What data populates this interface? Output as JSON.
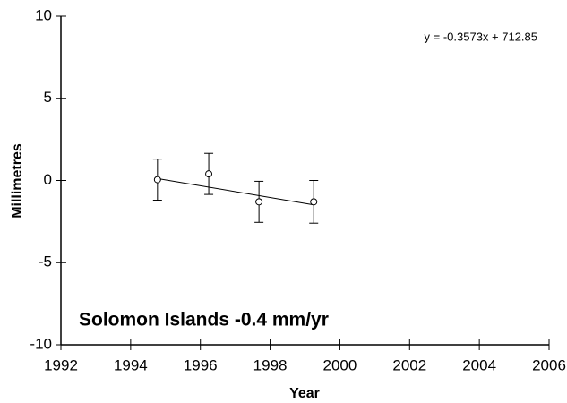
{
  "chart_data": {
    "type": "scatter",
    "x_label": "Year",
    "y_label": "Millimetres",
    "annotation": "Solomon Islands -0.4 mm/yr",
    "trendline": {
      "label": "y = -0.3573x + 712.85",
      "slope": -0.3573,
      "intercept": 712.85
    },
    "x": [
      1994.77,
      1996.24,
      1997.68,
      1999.25
    ],
    "values": [
      0.05,
      0.4,
      -1.3,
      -1.3
    ],
    "errors": [
      1.25,
      1.25,
      1.25,
      1.3
    ],
    "color": "#000000",
    "xlim": [
      1992,
      2006
    ],
    "xticks": [
      1992,
      1994,
      1996,
      1998,
      2000,
      2002,
      2004,
      2006
    ],
    "ylim": [
      -10,
      10
    ],
    "yticks": [
      -10,
      -5,
      0,
      5,
      10
    ]
  }
}
